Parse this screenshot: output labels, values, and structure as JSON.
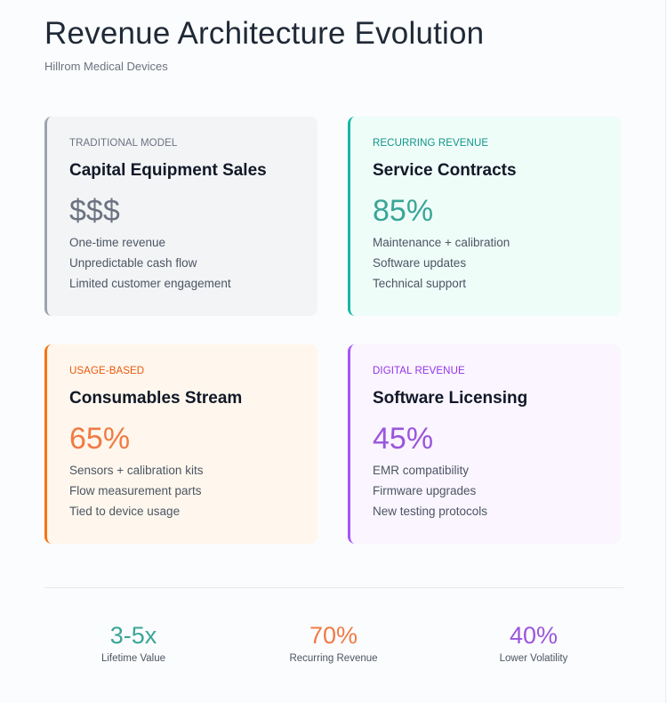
{
  "header": {
    "title": "Revenue Architecture Evolution",
    "subtitle": "Hillrom Medical Devices"
  },
  "cards": [
    {
      "tag": "Traditional Model",
      "title": "Capital Equipment Sales",
      "value": "$$$",
      "items": [
        "One-time revenue",
        "Unpredictable cash flow",
        "Limited customer engagement"
      ],
      "accent": "#9ca3af",
      "tag_color": "#6b7280",
      "value_color": "#6b7280"
    },
    {
      "tag": "Recurring Revenue",
      "title": "Service Contracts",
      "value": "85%",
      "items": [
        "Maintenance + calibration",
        "Software updates",
        "Technical support"
      ],
      "accent": "#14b8a6",
      "tag_color": "#0f9488",
      "value_color": "#3aa597"
    },
    {
      "tag": "Usage-Based",
      "title": "Consumables Stream",
      "value": "65%",
      "items": [
        "Sensors + calibration kits",
        "Flow measurement parts",
        "Tied to device usage"
      ],
      "accent": "#f97316",
      "tag_color": "#ea580c",
      "value_color": "#f07b45"
    },
    {
      "tag": "Digital Revenue",
      "title": "Software Licensing",
      "value": "45%",
      "items": [
        "EMR compatibility",
        "Firmware upgrades",
        "New testing protocols"
      ],
      "accent": "#a855f7",
      "tag_color": "#9333ea",
      "value_color": "#9b55dc"
    }
  ],
  "stats": [
    {
      "value": "3-5x",
      "label": "Lifetime Value",
      "color": "#3aa597"
    },
    {
      "value": "70%",
      "label": "Recurring Revenue",
      "color": "#f07b45"
    },
    {
      "value": "40%",
      "label": "Lower Volatility",
      "color": "#9b55dc"
    }
  ]
}
